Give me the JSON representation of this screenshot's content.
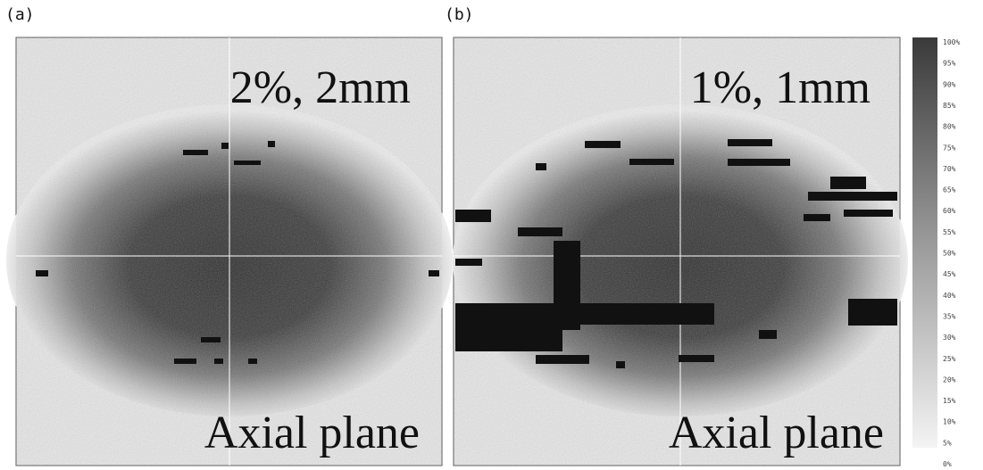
{
  "panels": [
    {
      "label": "(a)",
      "criterion": "2%, 2mm",
      "plane": "Axial plane"
    },
    {
      "label": "(b)",
      "criterion": "1%, 1mm",
      "plane": "Axial plane"
    }
  ],
  "colorbar": {
    "labels": [
      "100%",
      "95%",
      "90%",
      "85%",
      "80%",
      "75%",
      "70%",
      "65%",
      "60%",
      "55%",
      "50%",
      "45%",
      "40%",
      "35%",
      "30%",
      "25%",
      "20%",
      "15%",
      "10%",
      "5%",
      "0%"
    ]
  }
}
